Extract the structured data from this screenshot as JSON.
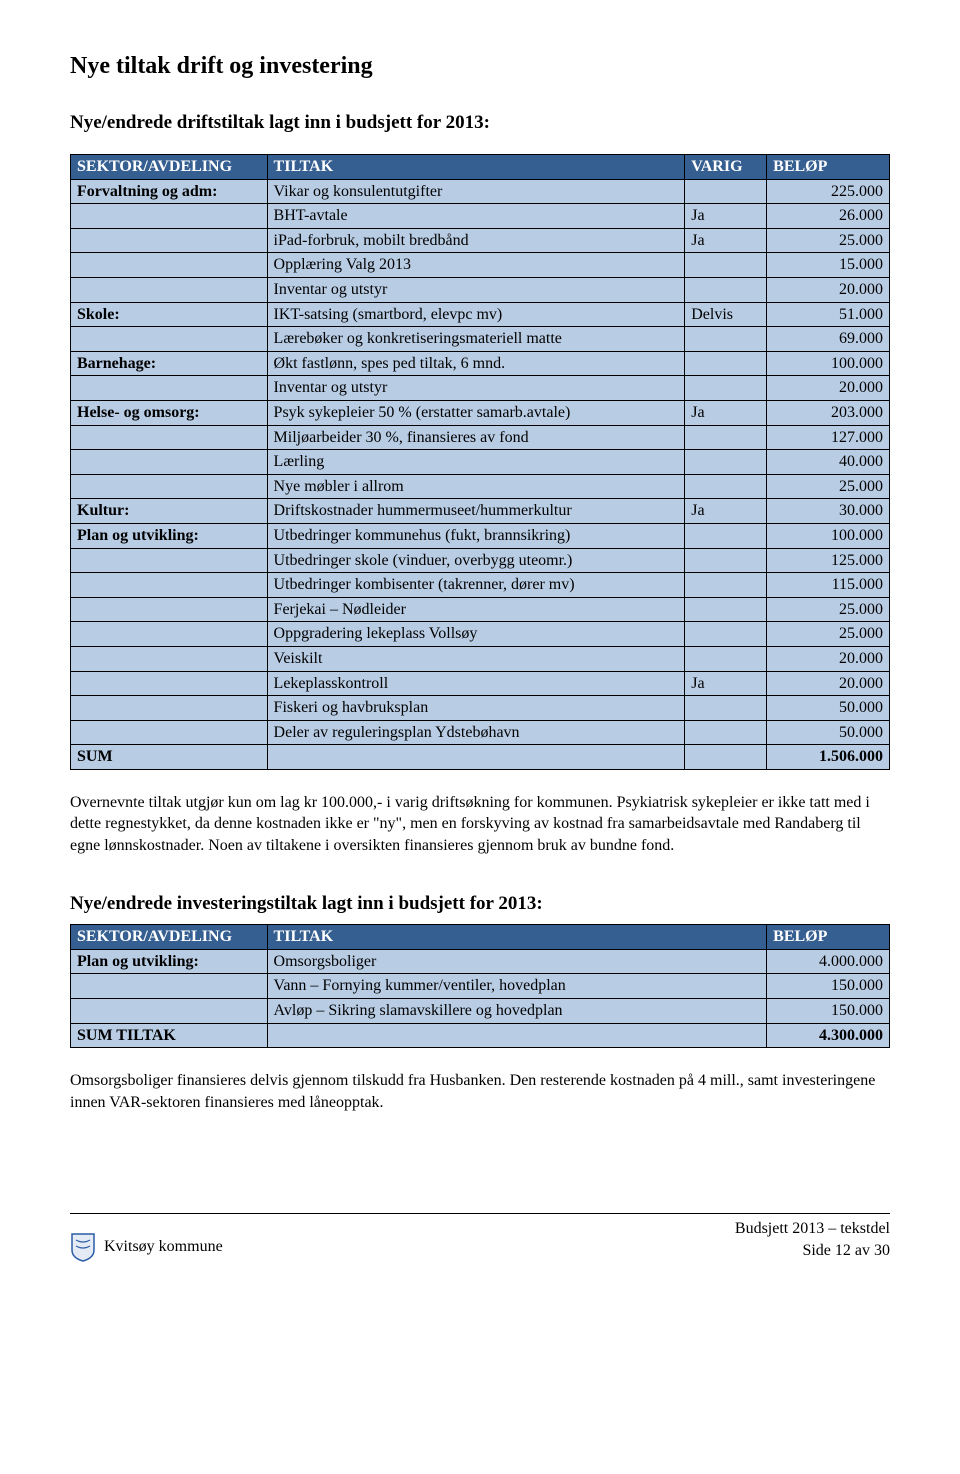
{
  "colors": {
    "header_bg": "#365f91",
    "header_text": "#ffffff",
    "body_bg": "#b8cce4",
    "border": "#000000"
  },
  "headings": {
    "h1": "Nye tiltak drift og investering",
    "h2a": "Nye/endrede driftstiltak lagt inn i budsjett for 2013:",
    "h2b": "Nye/endrede investeringstiltak lagt inn i budsjett for 2013:"
  },
  "table1": {
    "headers": [
      "SEKTOR/AVDELING",
      "TILTAK",
      "VARIG",
      "BELØP"
    ],
    "col_widths": [
      "24%",
      "51%",
      "10%",
      "15%"
    ],
    "rows": [
      {
        "sektor": "Forvaltning og adm:",
        "tiltak": "Vikar og konsulentutgifter",
        "varig": "",
        "belop": "225.000",
        "bold_sektor": true
      },
      {
        "sektor": "",
        "tiltak": "BHT-avtale",
        "varig": "Ja",
        "belop": "26.000"
      },
      {
        "sektor": "",
        "tiltak": "iPad-forbruk, mobilt bredbånd",
        "varig": "Ja",
        "belop": "25.000"
      },
      {
        "sektor": "",
        "tiltak": "Opplæring Valg 2013",
        "varig": "",
        "belop": "15.000"
      },
      {
        "sektor": "",
        "tiltak": "Inventar og utstyr",
        "varig": "",
        "belop": "20.000"
      },
      {
        "sektor": "Skole:",
        "tiltak": "IKT-satsing (smartbord, elevpc mv)",
        "varig": "Delvis",
        "belop": "51.000",
        "bold_sektor": true
      },
      {
        "sektor": "",
        "tiltak": "Lærebøker og konkretiseringsmateriell matte",
        "varig": "",
        "belop": "69.000"
      },
      {
        "sektor": "Barnehage:",
        "tiltak": "Økt fastlønn, spes ped tiltak, 6 mnd.",
        "varig": "",
        "belop": "100.000",
        "bold_sektor": true
      },
      {
        "sektor": "",
        "tiltak": "Inventar og utstyr",
        "varig": "",
        "belop": "20.000"
      },
      {
        "sektor": "Helse- og omsorg:",
        "tiltak": "Psyk sykepleier 50 % (erstatter samarb.avtale)",
        "varig": "Ja",
        "belop": "203.000",
        "bold_sektor": true
      },
      {
        "sektor": "",
        "tiltak": "Miljøarbeider 30 %, finansieres av fond",
        "varig": "",
        "belop": "127.000"
      },
      {
        "sektor": "",
        "tiltak": "Lærling",
        "varig": "",
        "belop": "40.000"
      },
      {
        "sektor": "",
        "tiltak": "Nye møbler i allrom",
        "varig": "",
        "belop": "25.000"
      },
      {
        "sektor": "Kultur:",
        "tiltak": "Driftskostnader hummermuseet/hummerkultur",
        "varig": "Ja",
        "belop": "30.000",
        "bold_sektor": true
      },
      {
        "sektor": "Plan og utvikling:",
        "tiltak": "Utbedringer kommunehus (fukt, brannsikring)",
        "varig": "",
        "belop": "100.000",
        "bold_sektor": true
      },
      {
        "sektor": "",
        "tiltak": "Utbedringer skole (vinduer, overbygg uteomr.)",
        "varig": "",
        "belop": "125.000"
      },
      {
        "sektor": "",
        "tiltak": "Utbedringer kombisenter (takrenner, dører mv)",
        "varig": "",
        "belop": "115.000"
      },
      {
        "sektor": "",
        "tiltak": "Ferjekai – Nødleider",
        "varig": "",
        "belop": "25.000"
      },
      {
        "sektor": "",
        "tiltak": "Oppgradering lekeplass Vollsøy",
        "varig": "",
        "belop": "25.000"
      },
      {
        "sektor": "",
        "tiltak": "Veiskilt",
        "varig": "",
        "belop": "20.000"
      },
      {
        "sektor": "",
        "tiltak": "Lekeplasskontroll",
        "varig": "Ja",
        "belop": "20.000"
      },
      {
        "sektor": "",
        "tiltak": "Fiskeri og havbruksplan",
        "varig": "",
        "belop": "50.000"
      },
      {
        "sektor": "",
        "tiltak": "Deler av reguleringsplan Ydstebøhavn",
        "varig": "",
        "belop": "50.000"
      }
    ],
    "sum": {
      "label": "SUM",
      "belop": "1.506.000"
    }
  },
  "para1": "Overnevnte tiltak utgjør kun om lag kr 100.000,- i varig driftsøkning for kommunen. Psykiatrisk sykepleier er ikke tatt med i dette regnestykket, da denne kostnaden ikke er \"ny\", men en forskyving av kostnad fra samarbeidsavtale med Randaberg til egne lønnskostnader. Noen av tiltakene i oversikten finansieres gjennom bruk av bundne fond.",
  "table2": {
    "headers": [
      "SEKTOR/AVDELING",
      "TILTAK",
      "BELØP"
    ],
    "col_widths": [
      "24%",
      "61%",
      "15%"
    ],
    "rows": [
      {
        "sektor": "Plan og utvikling:",
        "tiltak": "Omsorgsboliger",
        "belop": "4.000.000",
        "bold_sektor": true
      },
      {
        "sektor": "",
        "tiltak": "Vann – Fornying kummer/ventiler, hovedplan",
        "belop": "150.000"
      },
      {
        "sektor": "",
        "tiltak": "Avløp – Sikring slamavskillere og hovedplan",
        "belop": "150.000"
      }
    ],
    "sum": {
      "label": "SUM TILTAK",
      "belop": "4.300.000"
    }
  },
  "para2": "Omsorgsboliger finansieres delvis gjennom tilskudd fra Husbanken. Den resterende kostnaden på 4 mill., samt investeringene innen VAR-sektoren finansieres med låneopptak.",
  "footer": {
    "left": "Kvitsøy kommune",
    "right1": "Budsjett 2013 – tekstdel",
    "right2": "Side 12 av 30"
  }
}
